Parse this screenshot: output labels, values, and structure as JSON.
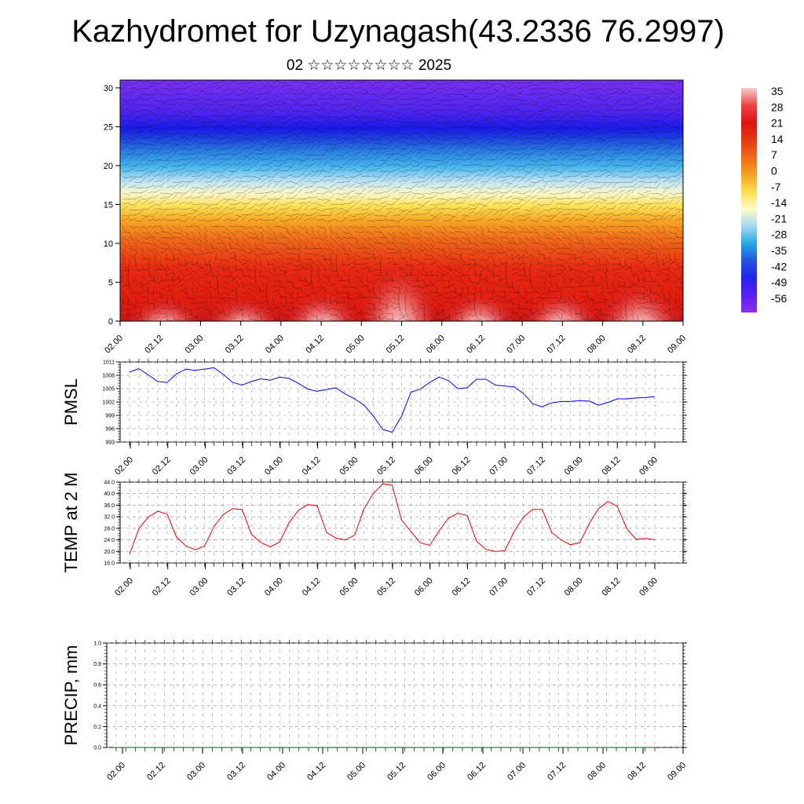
{
  "title": "Kazhydromet for Uzynagash(43.2336 76.2997)",
  "subtitle": "02 ☆☆☆☆☆☆☆☆ 2025",
  "time_ticks": [
    "02.00",
    "02.12",
    "03.00",
    "03.12",
    "04.00",
    "04.12",
    "05.00",
    "05.12",
    "06.00",
    "06.12",
    "07.00",
    "07.12",
    "08.00",
    "08.12",
    "09.00"
  ],
  "colorbar": {
    "labels": [
      "35",
      "28",
      "21",
      "14",
      "7",
      "0",
      "-7",
      "-14",
      "-21",
      "-28",
      "-35",
      "-42",
      "-49",
      "-56"
    ],
    "stops": [
      "#f5d0d0",
      "#ee4444",
      "#dd1111",
      "#e23a10",
      "#ee6a18",
      "#f5a020",
      "#fde050",
      "#fffcc8",
      "#a4d8f0",
      "#28a8e8",
      "#2255dd",
      "#2222ee",
      "#5a1ff0",
      "#8a30f0"
    ]
  },
  "chart_data": [
    {
      "type": "heatmap",
      "title": "",
      "ylabel": "",
      "ylim": [
        0,
        31
      ],
      "y_ticks": [
        "0",
        "5",
        "10",
        "15",
        "20",
        "25",
        "30"
      ],
      "x_range_hours": [
        0,
        168
      ],
      "vmin": -56,
      "vmax": 35,
      "description_free": true
    },
    {
      "type": "line",
      "ylabel": "PMSL",
      "ylim": [
        993,
        1011
      ],
      "y_ticks": [
        "993",
        "996",
        "999",
        "1002",
        "1005",
        "1008",
        "1011"
      ],
      "color": "#0000ee",
      "x": [
        0,
        3,
        6,
        9,
        12,
        15,
        18,
        21,
        24,
        27,
        30,
        33,
        36,
        39,
        42,
        45,
        48,
        51,
        54,
        57,
        60,
        63,
        66,
        69,
        72,
        75,
        78,
        81,
        84,
        87,
        90,
        93,
        96,
        99,
        102,
        105,
        108,
        111,
        114,
        117,
        120,
        123,
        126,
        129,
        132,
        135,
        138,
        141,
        144,
        147,
        150,
        153,
        156,
        159,
        162,
        165,
        168
      ],
      "values": [
        1008.7,
        1009.5,
        1008.1,
        1006.6,
        1006.4,
        1008.3,
        1009.4,
        1009.1,
        1009.4,
        1009.7,
        1008.2,
        1006.4,
        1005.8,
        1006.6,
        1007.2,
        1006.9,
        1007.6,
        1007.3,
        1006.2,
        1004.9,
        1004.4,
        1004.8,
        1005.2,
        1003.8,
        1002.7,
        1001.3,
        998.8,
        995.8,
        995.2,
        998.8,
        1004.2,
        1004.9,
        1006.4,
        1007.6,
        1006.8,
        1005.0,
        1005.2,
        1007.1,
        1007.1,
        1005.8,
        1005.6,
        1005.4,
        1003.9,
        1001.6,
        1000.9,
        1001.8,
        1002.1,
        1002.1,
        1002.3,
        1002.2,
        1001.3,
        1001.9,
        1002.7,
        1002.7,
        1002.9,
        1003.0,
        1003.2
      ]
    },
    {
      "type": "line",
      "ylabel": "TEMP at 2 M",
      "ylim": [
        16,
        44
      ],
      "y_ticks": [
        "16.0",
        "20.0",
        "24.0",
        "28.0",
        "32.0",
        "36.0",
        "40.0",
        "44.0"
      ],
      "color": "#ee0000",
      "x": [
        0,
        3,
        6,
        9,
        12,
        15,
        18,
        21,
        24,
        27,
        30,
        33,
        36,
        39,
        42,
        45,
        48,
        51,
        54,
        57,
        60,
        63,
        66,
        69,
        72,
        75,
        78,
        81,
        84,
        87,
        90,
        93,
        96,
        99,
        102,
        105,
        108,
        111,
        114,
        117,
        120,
        123,
        126,
        129,
        132,
        135,
        138,
        141,
        144,
        147,
        150,
        153,
        156,
        159,
        162,
        165,
        168
      ],
      "values": [
        19.0,
        27.9,
        31.9,
        33.9,
        33.0,
        25.0,
        21.9,
        20.6,
        21.9,
        28.6,
        32.8,
        34.8,
        34.5,
        25.9,
        23.1,
        21.6,
        23.2,
        29.9,
        34.2,
        36.2,
        35.8,
        26.6,
        24.6,
        24.0,
        25.6,
        34.8,
        40.1,
        43.4,
        42.9,
        30.9,
        26.9,
        23.0,
        22.1,
        27.1,
        31.5,
        33.2,
        32.4,
        23.5,
        20.7,
        20.0,
        20.2,
        26.9,
        31.9,
        34.6,
        34.5,
        26.6,
        24.0,
        22.3,
        23.0,
        29.6,
        34.8,
        37.3,
        35.6,
        27.9,
        24.2,
        24.5,
        24.1
      ]
    },
    {
      "type": "line",
      "ylabel": "PRECIP, mm",
      "ylim": [
        0,
        1
      ],
      "y_ticks": [
        "0.0",
        "0.2",
        "0.4",
        "0.6",
        "0.8",
        "1.0"
      ],
      "color": "#006400",
      "x": [
        0,
        168
      ],
      "values": [
        0,
        0
      ]
    }
  ]
}
